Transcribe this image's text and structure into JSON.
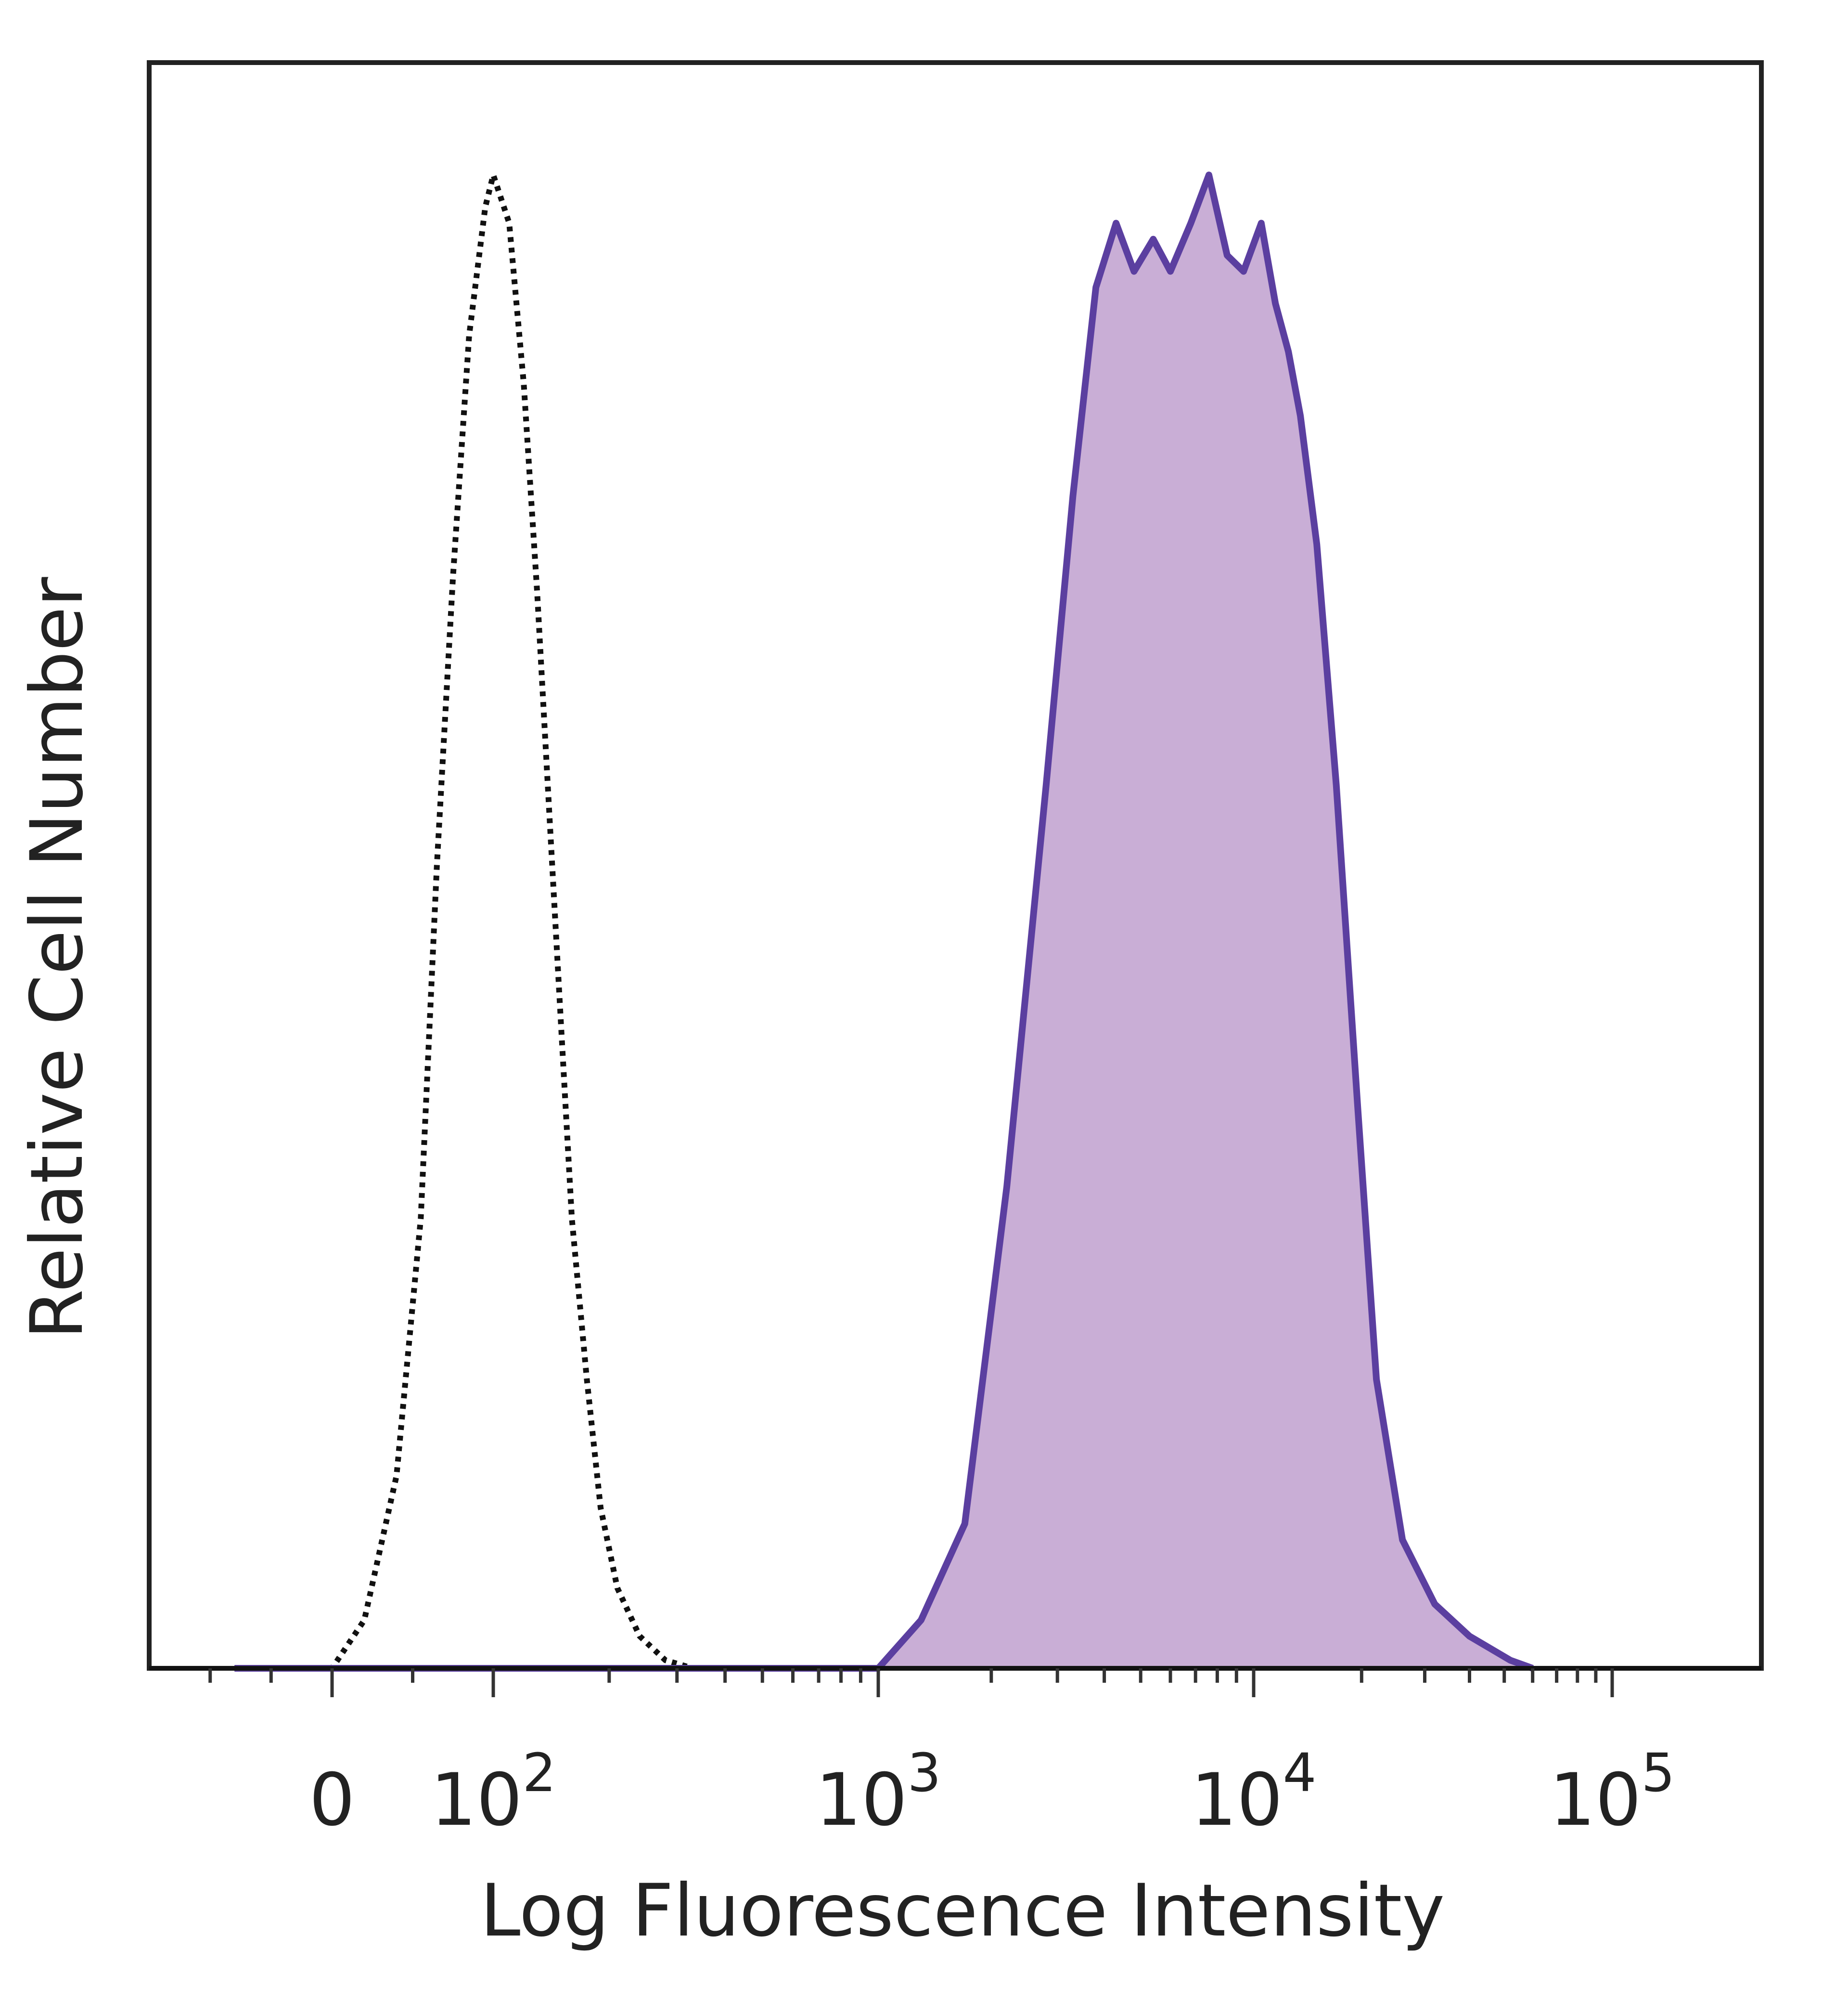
{
  "chart_data": {
    "type": "area",
    "xlabel": "Log Fluorescence Intensity",
    "ylabel": "Relative Cell Number",
    "x_scale": "biexponential",
    "x_ticks": [
      {
        "value": 0,
        "base": "0",
        "exp": ""
      },
      {
        "value": 100,
        "base": "10",
        "exp": "2"
      },
      {
        "value": 1000,
        "base": "10",
        "exp": "3"
      },
      {
        "value": 10000,
        "base": "10",
        "exp": "4"
      },
      {
        "value": 100000,
        "base": "10",
        "exp": "5"
      }
    ],
    "ylim": [
      0,
      1.0
    ],
    "grid": false,
    "series": [
      {
        "style": "dotted-outline",
        "color": "#111111",
        "fill": "none",
        "x": [
          -80,
          0,
          20,
          40,
          55,
          65,
          75,
          85,
          95,
          100,
          110,
          120,
          130,
          140,
          150,
          160,
          175,
          190,
          210,
          240,
          280,
          330,
          400
        ],
        "y": [
          0,
          0,
          0.03,
          0.12,
          0.28,
          0.5,
          0.68,
          0.83,
          0.91,
          0.93,
          0.9,
          0.8,
          0.67,
          0.53,
          0.4,
          0.28,
          0.18,
          0.1,
          0.05,
          0.02,
          0.005,
          0,
          0
        ]
      },
      {
        "style": "filled",
        "color": "#5b3fa0",
        "fill": "#c9aed6",
        "x": [
          -80,
          1000,
          1300,
          1700,
          2200,
          2800,
          3300,
          3800,
          4300,
          4800,
          5400,
          6000,
          6800,
          7600,
          8500,
          9400,
          10500,
          11500,
          12500,
          13500,
          15000,
          17000,
          19500,
          22000,
          26000,
          32000,
          40000,
          52000,
          60000
        ],
        "y": [
          0,
          0,
          0.03,
          0.09,
          0.3,
          0.55,
          0.73,
          0.86,
          0.9,
          0.87,
          0.89,
          0.87,
          0.9,
          0.93,
          0.88,
          0.87,
          0.9,
          0.85,
          0.82,
          0.78,
          0.7,
          0.55,
          0.35,
          0.18,
          0.08,
          0.04,
          0.02,
          0.005,
          0
        ]
      }
    ]
  }
}
